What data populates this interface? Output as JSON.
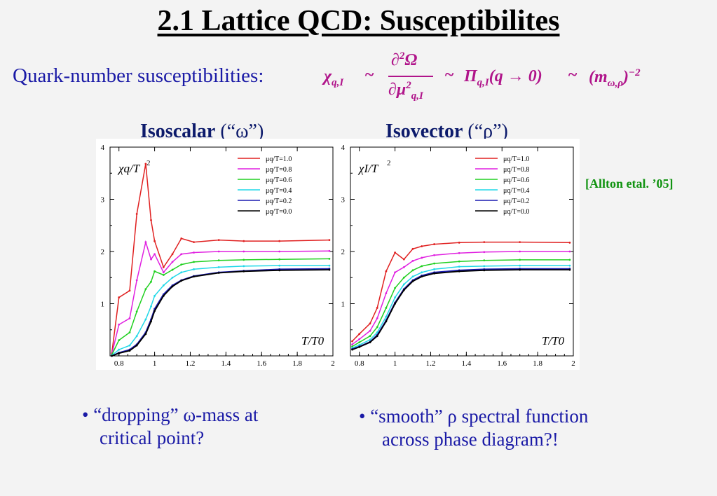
{
  "title": "2.1 Lattice QCD: Susceptibilites",
  "qn_label": "Quark-number susceptibilities:",
  "formula": {
    "chi": "χ",
    "chi_sub": "q,I",
    "tilde1": "~",
    "num": "∂",
    "num_sup": "2",
    "num_omega": "Ω",
    "den": "∂μ",
    "den_sup": "2",
    "den_sub": "q,I",
    "tilde2": "~",
    "pi": "Π",
    "pi_sub": "q,I",
    "pi_arg": "(q → 0)",
    "tilde3": "~",
    "mass": "(m",
    "mass_sub": "ω,ρ",
    "mass_close": ")",
    "mass_sup": "−2"
  },
  "panel_titles": {
    "left_bold": "Isoscalar",
    "left_norm": " (“ω”)",
    "right_bold": "Isovector",
    "right_norm": " (“ρ”)"
  },
  "reference": "[Allton etal. ’05]",
  "bullets": {
    "left_line1": "• “dropping” ω-mass at",
    "left_line2": "critical point?",
    "right_line1": "• “smooth” ρ spectral function",
    "right_line2": "across phase diagram?!"
  },
  "colors": {
    "mu10": "#e02020",
    "mu08": "#e020e0",
    "mu06": "#20d020",
    "mu04": "#20d8e8",
    "mu02": "#1a1ab0",
    "mu00": "#000000"
  },
  "chart_data": [
    {
      "type": "line",
      "ylabel": "χ_q/T²",
      "xlabel": "T/T_0",
      "xlim": [
        0.75,
        2.0
      ],
      "ylim": [
        0,
        4
      ],
      "xticks": [
        "0.8",
        "1",
        "1.2",
        "1.4",
        "1.6",
        "1.8",
        "2"
      ],
      "yticks": [
        "1",
        "2",
        "3",
        "4"
      ],
      "legend_position": "top-right",
      "series": [
        {
          "name": "μq/T=1.0",
          "color": "#e02020",
          "x": [
            0.76,
            0.8,
            0.86,
            0.9,
            0.95,
            0.98,
            1.0,
            1.05,
            1.1,
            1.15,
            1.22,
            1.36,
            1.5,
            1.7,
            1.98
          ],
          "y": [
            0.05,
            1.12,
            1.25,
            2.72,
            3.68,
            2.6,
            2.2,
            1.7,
            1.95,
            2.25,
            2.18,
            2.22,
            2.2,
            2.2,
            2.22
          ]
        },
        {
          "name": "μq/T=0.8",
          "color": "#e020e0",
          "x": [
            0.76,
            0.8,
            0.86,
            0.9,
            0.95,
            0.98,
            1.0,
            1.05,
            1.1,
            1.15,
            1.22,
            1.36,
            1.5,
            1.7,
            1.98
          ],
          "y": [
            0.03,
            0.6,
            0.72,
            1.45,
            2.18,
            1.85,
            1.95,
            1.6,
            1.8,
            1.95,
            1.98,
            2.0,
            2.0,
            2.0,
            2.01
          ]
        },
        {
          "name": "μq/T=0.6",
          "color": "#20d020",
          "x": [
            0.76,
            0.8,
            0.86,
            0.9,
            0.95,
            0.98,
            1.0,
            1.05,
            1.1,
            1.15,
            1.22,
            1.36,
            1.5,
            1.7,
            1.98
          ],
          "y": [
            0.02,
            0.3,
            0.45,
            0.85,
            1.28,
            1.42,
            1.62,
            1.55,
            1.65,
            1.75,
            1.8,
            1.83,
            1.84,
            1.85,
            1.86
          ]
        },
        {
          "name": "μq/T=0.4",
          "color": "#20d8e8",
          "x": [
            0.76,
            0.8,
            0.86,
            0.9,
            0.95,
            0.98,
            1.0,
            1.05,
            1.1,
            1.15,
            1.22,
            1.36,
            1.5,
            1.7,
            1.98
          ],
          "y": [
            0.01,
            0.12,
            0.2,
            0.38,
            0.7,
            0.95,
            1.15,
            1.35,
            1.5,
            1.6,
            1.66,
            1.7,
            1.72,
            1.73,
            1.73
          ]
        },
        {
          "name": "μq/T=0.2",
          "color": "#1a1ab0",
          "x": [
            0.76,
            0.8,
            0.86,
            0.9,
            0.95,
            0.98,
            1.0,
            1.05,
            1.1,
            1.15,
            1.22,
            1.36,
            1.5,
            1.7,
            1.98
          ],
          "y": [
            0.0,
            0.06,
            0.12,
            0.22,
            0.45,
            0.7,
            0.9,
            1.18,
            1.35,
            1.45,
            1.53,
            1.6,
            1.63,
            1.66,
            1.67
          ]
        },
        {
          "name": "μq/T=0.0",
          "color": "#000000",
          "x": [
            0.76,
            0.8,
            0.86,
            0.9,
            0.95,
            0.98,
            1.0,
            1.05,
            1.1,
            1.15,
            1.22,
            1.36,
            1.5,
            1.7,
            1.98
          ],
          "y": [
            0.0,
            0.05,
            0.1,
            0.2,
            0.42,
            0.66,
            0.86,
            1.15,
            1.33,
            1.44,
            1.52,
            1.59,
            1.62,
            1.64,
            1.65
          ]
        }
      ]
    },
    {
      "type": "line",
      "ylabel": "χ_I/T²",
      "xlabel": "T/T_0",
      "xlim": [
        0.75,
        2.0
      ],
      "ylim": [
        0,
        4
      ],
      "xticks": [
        "0.8",
        "1",
        "1.2",
        "1.4",
        "1.6",
        "1.8",
        "2"
      ],
      "yticks": [
        "1",
        "2",
        "3",
        "4"
      ],
      "legend_position": "top-right",
      "series": [
        {
          "name": "μq/T=1.0",
          "color": "#e02020",
          "x": [
            0.76,
            0.8,
            0.86,
            0.9,
            0.95,
            1.0,
            1.05,
            1.1,
            1.15,
            1.22,
            1.36,
            1.5,
            1.7,
            1.98
          ],
          "y": [
            0.28,
            0.42,
            0.62,
            0.92,
            1.62,
            1.98,
            1.85,
            2.05,
            2.1,
            2.14,
            2.17,
            2.18,
            2.18,
            2.17
          ]
        },
        {
          "name": "μq/T=0.8",
          "color": "#e020e0",
          "x": [
            0.76,
            0.8,
            0.86,
            0.9,
            0.95,
            1.0,
            1.05,
            1.1,
            1.15,
            1.22,
            1.36,
            1.5,
            1.7,
            1.98
          ],
          "y": [
            0.22,
            0.32,
            0.48,
            0.72,
            1.2,
            1.6,
            1.7,
            1.82,
            1.88,
            1.93,
            1.97,
            1.99,
            2.0,
            2.0
          ]
        },
        {
          "name": "μq/T=0.6",
          "color": "#20d020",
          "x": [
            0.76,
            0.8,
            0.86,
            0.9,
            0.95,
            1.0,
            1.05,
            1.1,
            1.15,
            1.22,
            1.36,
            1.5,
            1.7,
            1.98
          ],
          "y": [
            0.18,
            0.26,
            0.38,
            0.55,
            0.92,
            1.3,
            1.5,
            1.64,
            1.72,
            1.77,
            1.81,
            1.83,
            1.84,
            1.84
          ]
        },
        {
          "name": "μq/T=0.4",
          "color": "#20d8e8",
          "x": [
            0.76,
            0.8,
            0.86,
            0.9,
            0.95,
            1.0,
            1.05,
            1.1,
            1.15,
            1.22,
            1.36,
            1.5,
            1.7,
            1.98
          ],
          "y": [
            0.15,
            0.21,
            0.31,
            0.45,
            0.75,
            1.12,
            1.37,
            1.52,
            1.6,
            1.66,
            1.71,
            1.72,
            1.73,
            1.73
          ]
        },
        {
          "name": "μq/T=0.2",
          "color": "#1a1ab0",
          "x": [
            0.76,
            0.8,
            0.86,
            0.9,
            0.95,
            1.0,
            1.05,
            1.1,
            1.15,
            1.22,
            1.36,
            1.5,
            1.7,
            1.98
          ],
          "y": [
            0.13,
            0.18,
            0.27,
            0.4,
            0.68,
            1.02,
            1.28,
            1.45,
            1.54,
            1.6,
            1.64,
            1.66,
            1.67,
            1.67
          ]
        },
        {
          "name": "μq/T=0.0",
          "color": "#000000",
          "x": [
            0.76,
            0.8,
            0.86,
            0.9,
            0.95,
            1.0,
            1.05,
            1.1,
            1.15,
            1.22,
            1.36,
            1.5,
            1.7,
            1.98
          ],
          "y": [
            0.12,
            0.17,
            0.26,
            0.38,
            0.66,
            1.0,
            1.26,
            1.43,
            1.52,
            1.58,
            1.62,
            1.64,
            1.65,
            1.65
          ]
        }
      ]
    }
  ]
}
